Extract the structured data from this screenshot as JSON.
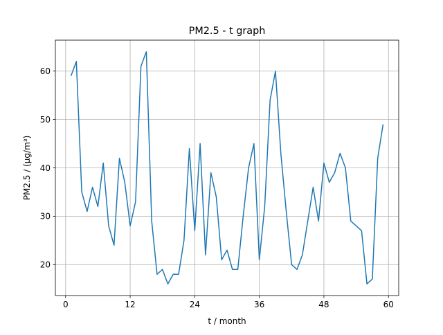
{
  "chart_data": {
    "type": "line",
    "title": "PM2.5 - t graph",
    "xlabel": "t / month",
    "ylabel": "PM2.5 / (μg/m³)",
    "xlim": [
      -1.9,
      61.9
    ],
    "ylim": [
      13.6,
      66.4
    ],
    "xticks": [
      0,
      12,
      24,
      36,
      48,
      60
    ],
    "yticks": [
      20,
      30,
      40,
      50,
      60
    ],
    "grid": true,
    "series": [
      {
        "color": "#1f77b4",
        "x": [
          1,
          2,
          3,
          4,
          5,
          6,
          7,
          8,
          9,
          10,
          11,
          12,
          13,
          14,
          15,
          16,
          17,
          18,
          19,
          20,
          21,
          22,
          23,
          24,
          25,
          26,
          27,
          28,
          29,
          30,
          31,
          32,
          33,
          34,
          35,
          36,
          37,
          38,
          39,
          40,
          41,
          42,
          43,
          44,
          45,
          46,
          47,
          48,
          49,
          50,
          51,
          52,
          53,
          54,
          55,
          56,
          57,
          58,
          59
        ],
        "y": [
          59,
          62,
          35,
          31,
          36,
          32,
          41,
          28,
          24,
          42,
          37,
          28,
          33,
          61,
          64,
          29,
          18,
          19,
          16,
          18,
          18,
          25,
          44,
          27,
          45,
          22,
          39,
          34,
          21,
          23,
          19,
          19,
          30,
          40,
          45,
          21,
          32,
          54,
          60,
          43,
          31,
          20,
          19,
          22,
          29,
          36,
          29,
          41,
          37,
          39,
          43,
          40,
          29,
          28,
          27,
          16,
          17,
          42,
          49
        ]
      }
    ]
  }
}
